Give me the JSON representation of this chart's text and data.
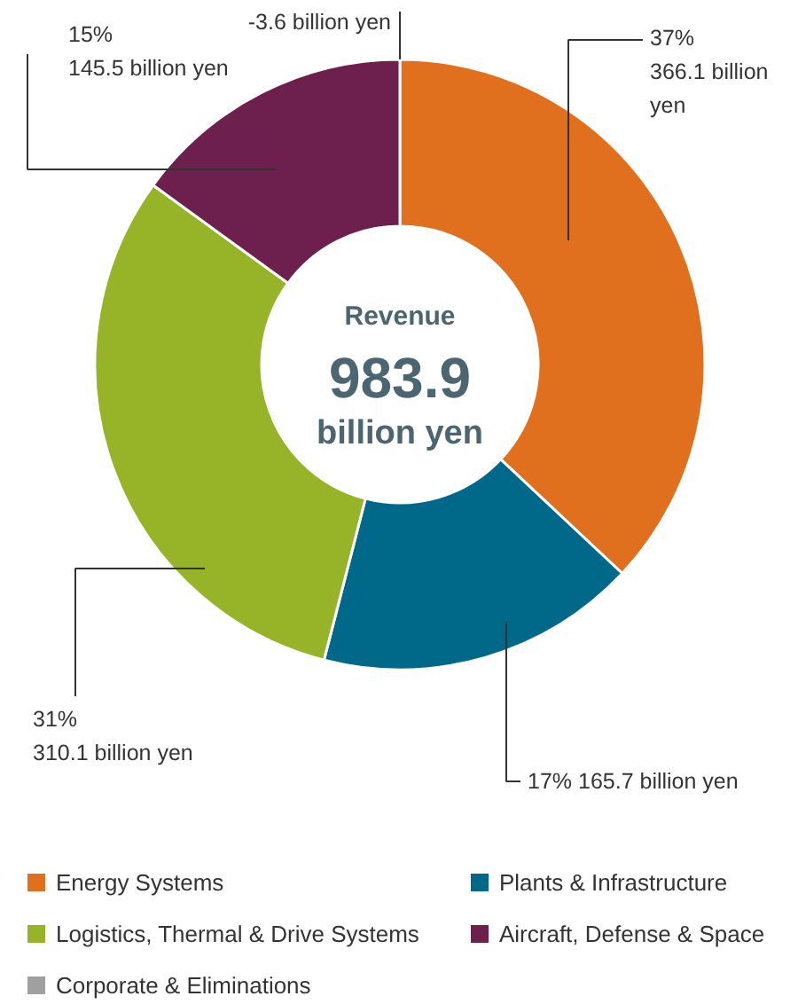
{
  "chart_data": {
    "type": "donut",
    "categories": [
      "Energy Systems",
      "Plants & Infrastructure",
      "Logistics, Thermal & Drive Systems",
      "Aircraft, Defense & Space",
      "Corporate & Eliminations"
    ],
    "values": [
      37,
      17,
      31,
      15,
      null
    ],
    "colors": [
      "#e0701e",
      "#00698a",
      "#97b429",
      "#6d1f4d",
      "#a0a0a0"
    ],
    "value_labels": [
      "37%\n366.1 billion\nyen",
      "17%  165.7 billion yen",
      "31%\n310.1 billion yen",
      "15%\n145.5 billion yen",
      null
    ],
    "annotations": [
      "Revenue",
      "983.9",
      "billion yen",
      "-3.6 billion yen"
    ],
    "legend": "bottom"
  }
}
